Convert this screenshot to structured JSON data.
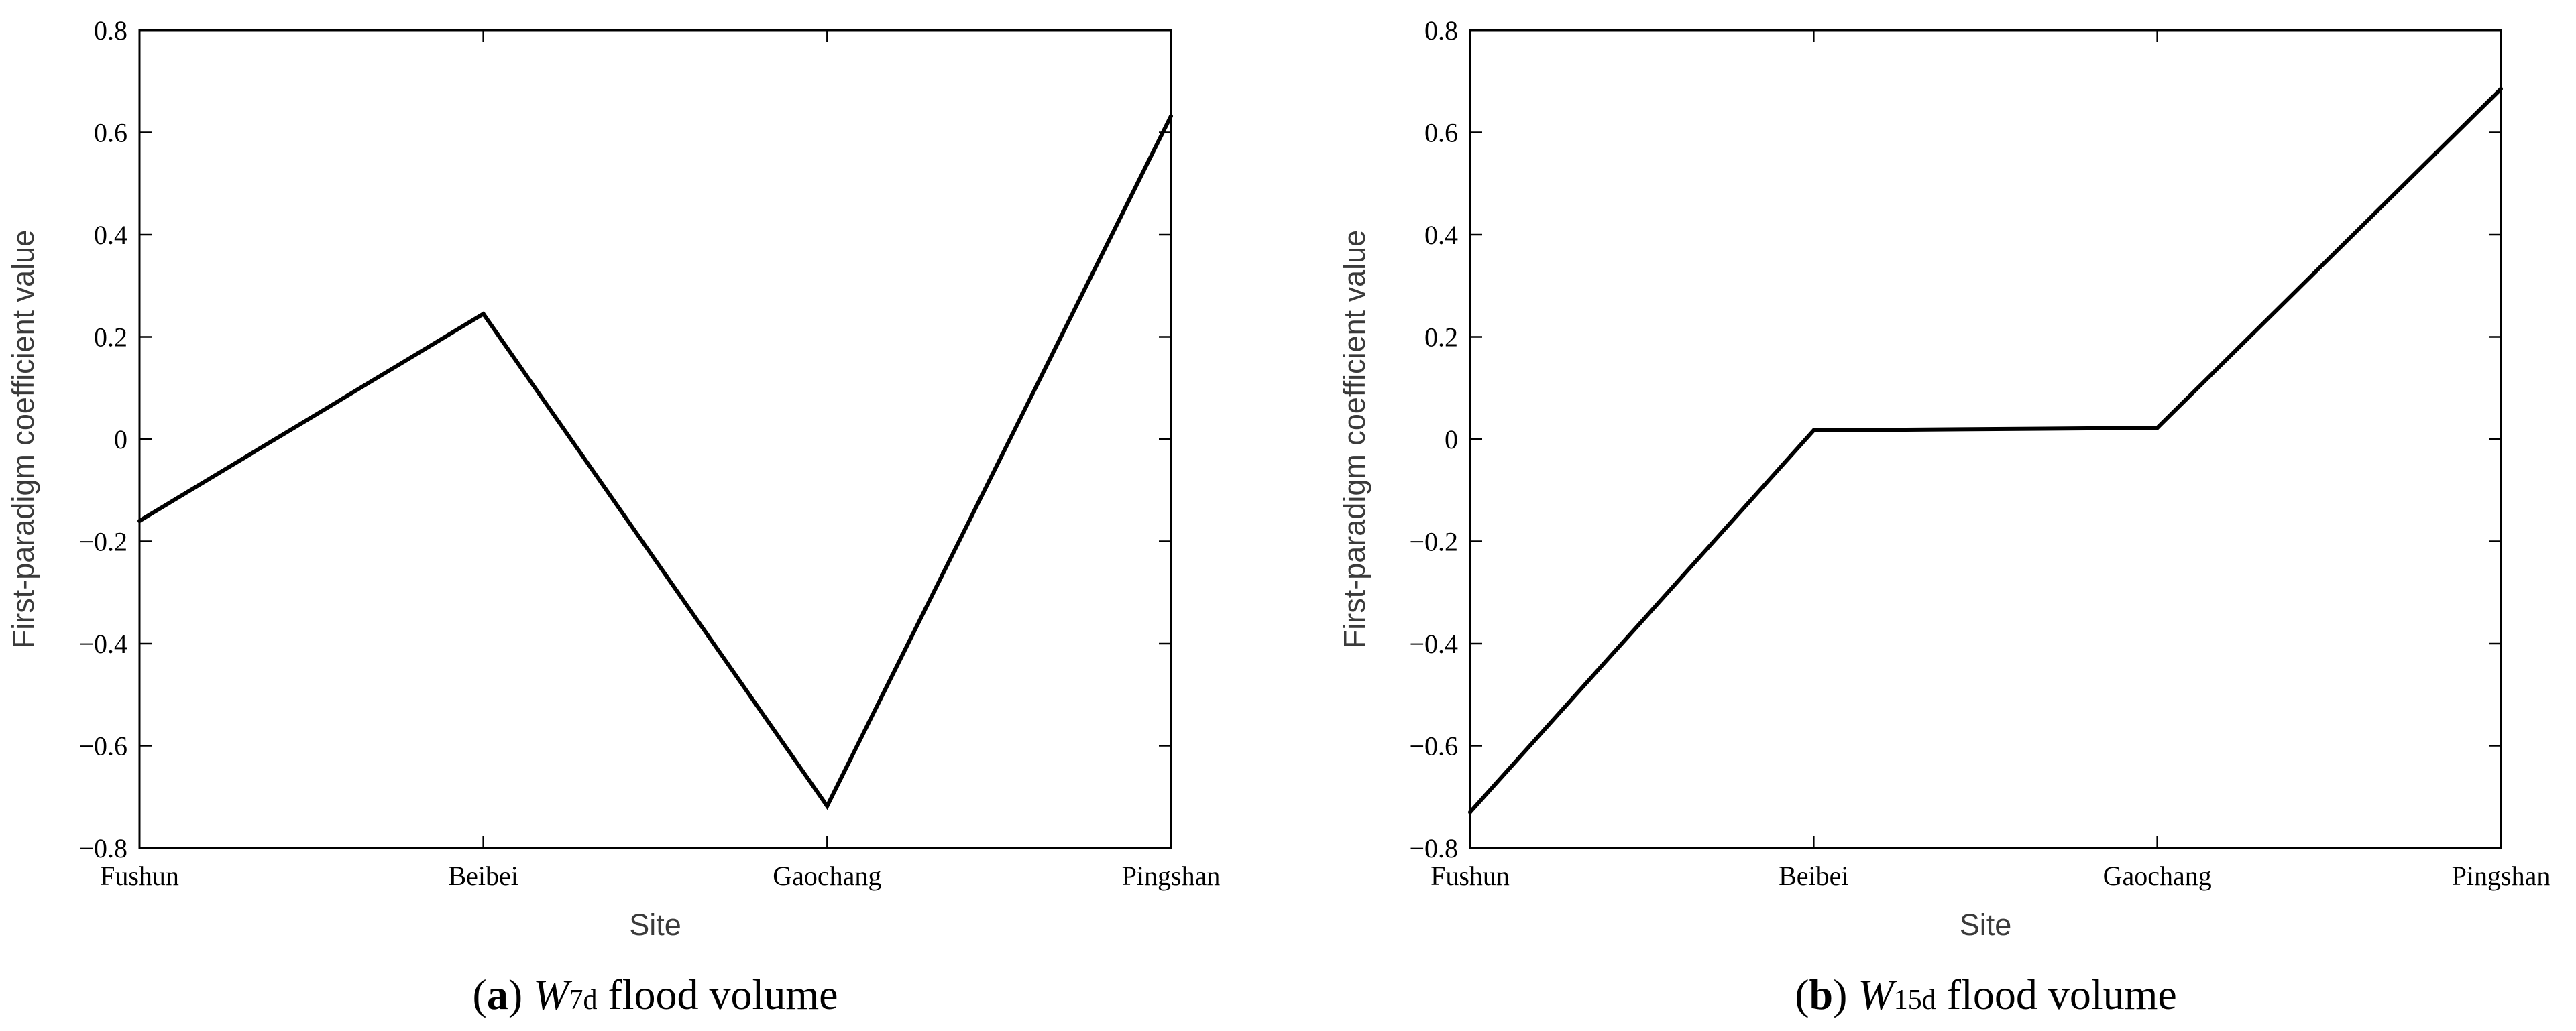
{
  "chart_data": [
    {
      "type": "line",
      "panel": "a",
      "caption": {
        "letter": "a",
        "var": "W",
        "sub": "7d",
        "suffix": " flood volume"
      },
      "xlabel": "Site",
      "ylabel": "First-paradigm coefficient value",
      "categories": [
        "Fushun",
        "Beibei",
        "Gaochang",
        "Pingshan"
      ],
      "values": [
        -0.16,
        0.245,
        -0.718,
        0.632
      ],
      "ylim": [
        -0.8,
        0.8
      ],
      "yticks": [
        -0.8,
        -0.6,
        -0.4,
        -0.2,
        0,
        0.2,
        0.4,
        0.6,
        0.8
      ],
      "ytick_labels": [
        "−0.8",
        "−0.6",
        "−0.4",
        "−0.2",
        "0",
        "0.2",
        "0.4",
        "0.6",
        "0.8"
      ],
      "grid": false
    },
    {
      "type": "line",
      "panel": "b",
      "caption": {
        "letter": "b",
        "var": "W",
        "sub": "15d",
        "suffix": " flood volume"
      },
      "xlabel": "Site",
      "ylabel": "First-paradigm coefficient value",
      "categories": [
        "Fushun",
        "Beibei",
        "Gaochang",
        "Pingshan"
      ],
      "values": [
        -0.73,
        0.017,
        0.022,
        0.685
      ],
      "ylim": [
        -0.8,
        0.8
      ],
      "yticks": [
        -0.8,
        -0.6,
        -0.4,
        -0.2,
        0,
        0.2,
        0.4,
        0.6,
        0.8
      ],
      "ytick_labels": [
        "−0.8",
        "−0.6",
        "−0.4",
        "−0.2",
        "0",
        "0.2",
        "0.4",
        "0.6",
        "0.8"
      ],
      "grid": false
    }
  ]
}
